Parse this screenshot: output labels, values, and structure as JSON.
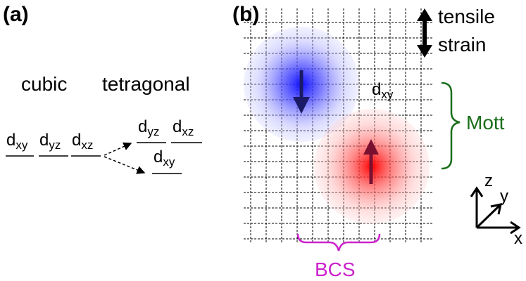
{
  "panel_a": {
    "label": "(a)",
    "cubic_label": "cubic",
    "tetragonal_label": "tetragonal",
    "cubic_orbitals": [
      {
        "main": "d",
        "sub": "xy"
      },
      {
        "main": "d",
        "sub": "yz"
      },
      {
        "main": "d",
        "sub": "xz"
      }
    ],
    "tetragonal_upper": [
      {
        "main": "d",
        "sub": "yz"
      },
      {
        "main": "d",
        "sub": "xz"
      }
    ],
    "tetragonal_lower": {
      "main": "d",
      "sub": "xy"
    }
  },
  "panel_b": {
    "label": "(b)",
    "strain_label_1": "tensile",
    "strain_label_2": "strain",
    "orbital": {
      "main": "d",
      "sub": "xy"
    },
    "mott_label": "Mott",
    "bcs_label": "BCS",
    "axes": {
      "z": "z",
      "y": "y",
      "x": "x"
    },
    "colors": {
      "spin_down": "#1a1aff",
      "spin_up": "#ff2222",
      "arrow_down": "#1a1a66",
      "arrow_up": "#7a1030",
      "mott": "#1a6e1a",
      "bcs": "#cc22cc"
    }
  }
}
